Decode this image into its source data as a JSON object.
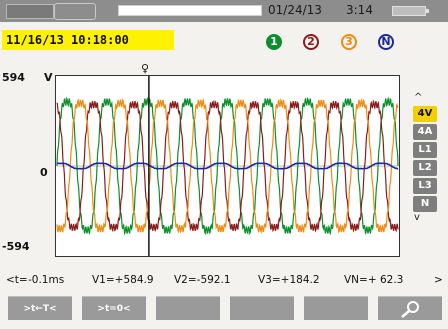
{
  "status": {
    "date": "01/24/13",
    "time": "3:14"
  },
  "timestamp": "11/16/13 10:18:00",
  "channels": [
    "1",
    "2",
    "3",
    "N"
  ],
  "axis": {
    "ymax": "594",
    "yunit": "V",
    "yzero": "0",
    "ymin": "-594"
  },
  "side_scale": {
    "up": "^",
    "items": [
      "4V",
      "4A",
      "L1",
      "L2",
      "L3",
      "N"
    ],
    "down": "v"
  },
  "readout": {
    "open": "<t=",
    "t": "-0.1ms",
    "v1": "V1=+584.9",
    "v2": "V2=-592.1",
    "v3": "V3=+184.2",
    "vn": "VN=+ 62.3",
    "close": ">"
  },
  "softkeys": [
    ">t←T<",
    ">t=0<",
    "",
    "",
    "",
    ""
  ],
  "chart_data": {
    "type": "line",
    "ylim": [
      -594,
      594
    ],
    "series": [
      {
        "color": "#0a8f2a",
        "amplitude": 480,
        "phase_deg": 0
      },
      {
        "color": "#8b1a1a",
        "amplitude": 460,
        "phase_deg": 120
      },
      {
        "color": "#f08a10",
        "amplitude": 470,
        "phase_deg": 240
      },
      {
        "color": "#1a2a9c",
        "amplitude": 20,
        "phase_deg": 60
      }
    ],
    "cycles": 8.5
  }
}
